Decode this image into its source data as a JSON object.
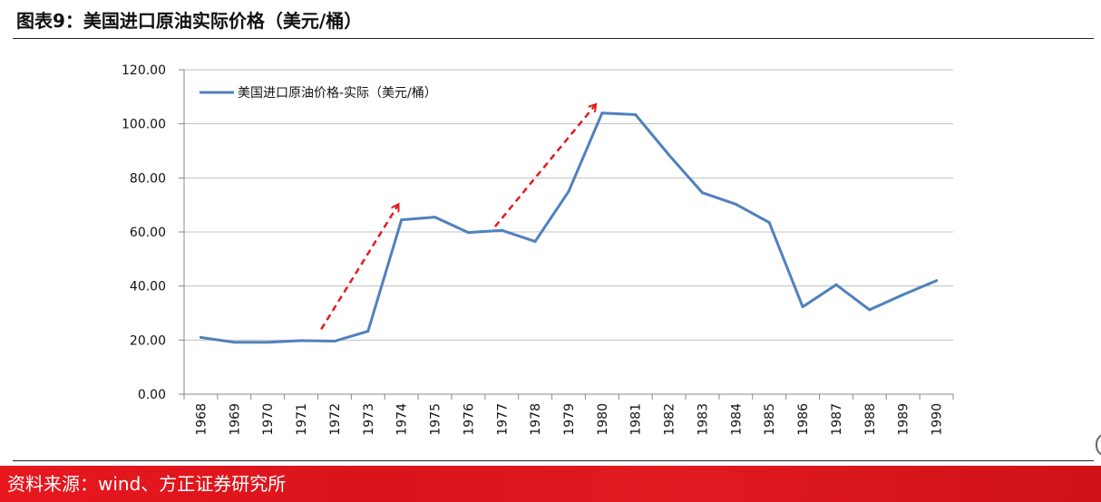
{
  "figure": {
    "title": "图表9：美国进口原油实际价格（美元/桶）"
  },
  "source": {
    "text": "资料来源：wind、方正证券研究所"
  },
  "colors": {
    "series": "#4f81bd",
    "arrow": "#e41b1b",
    "grid": "#c0c0c0",
    "source_bar": "#e3171d"
  },
  "chart_data": {
    "type": "line",
    "title": "",
    "xlabel": "",
    "ylabel": "",
    "ylim": [
      0,
      120
    ],
    "yticks": [
      "0.00",
      "20.00",
      "40.00",
      "60.00",
      "80.00",
      "100.00",
      "120.00"
    ],
    "grid": true,
    "legend": "top-left",
    "categories": [
      "1968",
      "1969",
      "1970",
      "1971",
      "1972",
      "1973",
      "1974",
      "1975",
      "1976",
      "1977",
      "1978",
      "1979",
      "1980",
      "1981",
      "1982",
      "1983",
      "1984",
      "1985",
      "1986",
      "1987",
      "1988",
      "1989",
      "1990"
    ],
    "series": [
      {
        "name": "美国进口原油价格-实际（美元/桶）",
        "values": [
          21.0,
          19.2,
          19.2,
          19.8,
          19.6,
          23.3,
          64.5,
          65.5,
          59.8,
          60.6,
          56.5,
          75.0,
          104.0,
          103.4,
          88.5,
          74.5,
          70.3,
          63.5,
          32.3,
          40.5,
          31.2,
          36.8,
          42.0
        ]
      }
    ],
    "annotations": [
      {
        "type": "arrow",
        "description": "rise",
        "from": [
          3.6,
          24
        ],
        "to": [
          5.9,
          70
        ]
      },
      {
        "type": "arrow",
        "description": "rise",
        "from": [
          8.8,
          62
        ],
        "to": [
          11.8,
          107
        ]
      }
    ]
  }
}
